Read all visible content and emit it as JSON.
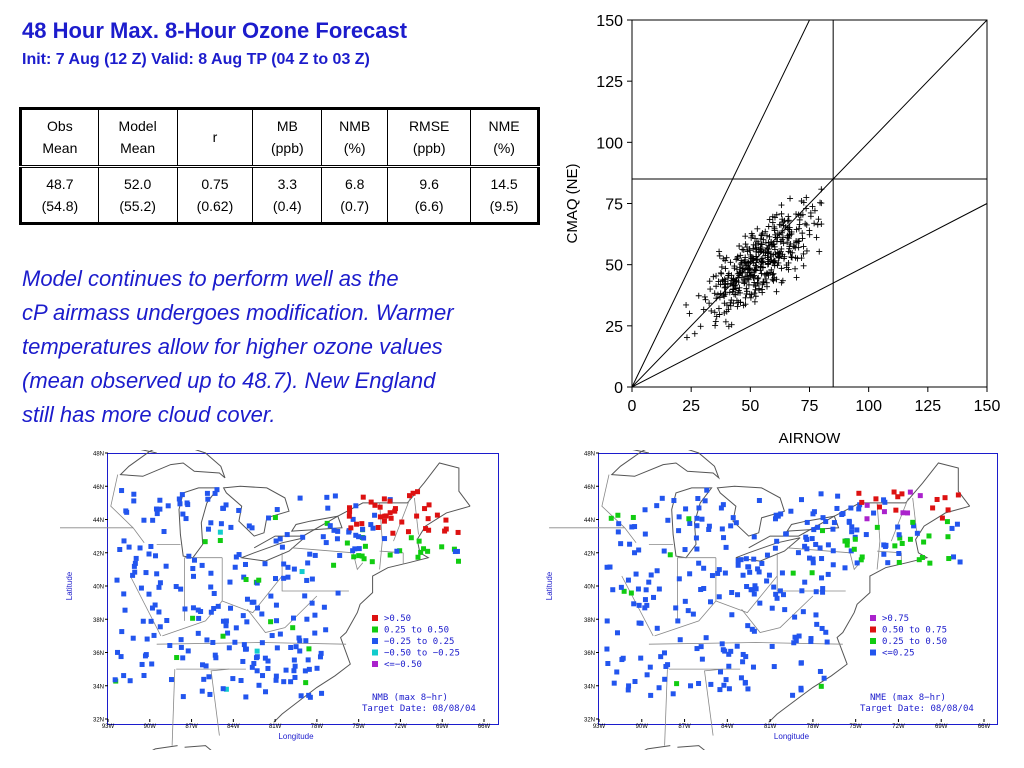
{
  "header": {
    "title": "48 Hour Max. 8-Hour Ozone Forecast",
    "subtitle": "Init: 7 Aug (12 Z)  Valid: 8 Aug TP (04 Z to 03 Z)"
  },
  "stats_table": {
    "headers": [
      [
        "Obs",
        "Mean"
      ],
      [
        "Model",
        "Mean"
      ],
      [
        "r",
        ""
      ],
      [
        "MB",
        "(ppb)"
      ],
      [
        "NMB",
        "(%)"
      ],
      [
        "RMSE",
        "(ppb)"
      ],
      [
        "NME",
        "(%)"
      ]
    ],
    "values": [
      [
        "48.7",
        "(54.8)"
      ],
      [
        "52.0",
        "(55.2)"
      ],
      [
        "0.75",
        "(0.62)"
      ],
      [
        "3.3",
        "(0.4)"
      ],
      [
        "6.8",
        "(0.7)"
      ],
      [
        "9.6",
        "(6.6)"
      ],
      [
        "14.5",
        "(9.5)"
      ]
    ]
  },
  "commentary": [
    "Model continues to perform well as the",
    "cP airmass undergoes modification.  Warmer",
    "temperatures allow for higher ozone values",
    "(mean observed up to 48.7).  New England",
    "still has more cloud cover."
  ],
  "chart_data": [
    {
      "type": "scatter",
      "xlabel": "AIRNOW",
      "ylabel": "CMAQ (NE)",
      "xlim": [
        0,
        150
      ],
      "ylim": [
        0,
        150
      ],
      "xticks": [
        "0",
        "25",
        "50",
        "75",
        "100",
        "125",
        "150"
      ],
      "yticks": [
        "0",
        "25",
        "50",
        "75",
        "100",
        "125",
        "150"
      ],
      "reference_lines": [
        {
          "slope": 1
        },
        {
          "slope": 2
        },
        {
          "slope": 0.5
        }
      ],
      "threshold": 85,
      "marker": "+",
      "marker_color": "#000000",
      "cloud": {
        "n": 430,
        "x_center": 54,
        "x_spread": 12,
        "slope": 0.75,
        "intercept": 10,
        "noise": 7,
        "x_range": [
          10,
          80
        ]
      }
    },
    {
      "type": "map",
      "metric": "NMB",
      "legend": [
        {
          "label": ">0.50",
          "color": "#dd1111"
        },
        {
          "label": "0.25 to 0.50",
          "color": "#11cc11"
        },
        {
          "label": "−0.25 to 0.25",
          "color": "#2255ee"
        },
        {
          "label": "−0.50 to −0.25",
          "color": "#11cccc"
        },
        {
          "label": "<=−0.50",
          "color": "#aa22cc"
        }
      ],
      "note_lines": [
        "NMB   (max 8−hr)",
        "Target Date: 08/08/04"
      ],
      "xlabel": "Longitude",
      "ylabel": "Latitude",
      "lon_ticks": [
        "93W",
        "90W",
        "87W",
        "84W",
        "81W",
        "78W",
        "75W",
        "72W",
        "69W",
        "66W"
      ],
      "lat_ticks": [
        "48N",
        "46N",
        "44N",
        "42N",
        "40N",
        "38N",
        "36N",
        "34N",
        "32N"
      ]
    },
    {
      "type": "map",
      "metric": "NME",
      "legend": [
        {
          "label": ">0.75",
          "color": "#aa22cc"
        },
        {
          "label": "0.50 to 0.75",
          "color": "#dd1111"
        },
        {
          "label": "0.25 to 0.50",
          "color": "#11cc11"
        },
        {
          "label": "<=0.25",
          "color": "#2255ee"
        }
      ],
      "note_lines": [
        "NME   (max 8−hr)",
        "Target Date: 08/08/04"
      ],
      "xlabel": "Longitude",
      "ylabel": "Latitude",
      "lon_ticks": [
        "93W",
        "90W",
        "87W",
        "84W",
        "81W",
        "78W",
        "75W",
        "72W",
        "69W",
        "66W"
      ],
      "lat_ticks": [
        "48N",
        "46N",
        "44N",
        "42N",
        "40N",
        "38N",
        "36N",
        "34N",
        "32N"
      ]
    }
  ]
}
